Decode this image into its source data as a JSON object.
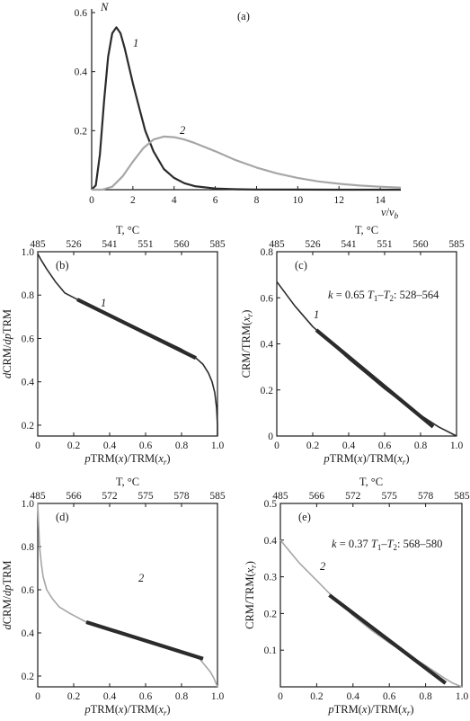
{
  "colors": {
    "dark": "#2b2b2b",
    "gray": "#a6a6a6",
    "axis": "#1a1a1a"
  },
  "chart_data": [
    {
      "id": "a",
      "panel_label": "(a)",
      "type": "line",
      "ylabel": "N",
      "xlabel": "v/v_b",
      "xlabel_parts": {
        "v": "v",
        "slash": "/",
        "vb": "v",
        "sub": "b"
      },
      "xlim": [
        0,
        15
      ],
      "ylim": [
        0,
        0.6
      ],
      "xticks": [
        0,
        2,
        4,
        6,
        8,
        10,
        12,
        14
      ],
      "yticks": [
        0.2,
        0.4,
        0.6
      ],
      "xtick_labels": [
        "0",
        "2",
        "4",
        "6",
        "8",
        "10",
        "12",
        "14"
      ],
      "ytick_labels": [
        "0.2",
        "0.4",
        "0.6"
      ],
      "series": [
        {
          "name": "1",
          "color": "dark",
          "x": [
            0,
            0.2,
            0.4,
            0.6,
            0.8,
            1.0,
            1.2,
            1.4,
            1.6,
            1.8,
            2.0,
            2.3,
            2.6,
            3.0,
            3.5,
            4.0,
            4.5,
            5.0,
            6.0,
            7.0,
            8.0,
            10.0,
            12.0,
            15.0
          ],
          "y": [
            0.0,
            0.015,
            0.12,
            0.3,
            0.45,
            0.53,
            0.55,
            0.53,
            0.48,
            0.42,
            0.36,
            0.28,
            0.2,
            0.13,
            0.07,
            0.04,
            0.022,
            0.012,
            0.004,
            0.0015,
            0.0006,
            0.0002,
            0.0001,
            0.0
          ]
        },
        {
          "name": "2",
          "color": "gray",
          "x": [
            0,
            0.5,
            1.0,
            1.5,
            2.0,
            2.5,
            3.0,
            3.5,
            4.0,
            4.5,
            5.0,
            6.0,
            7.0,
            8.0,
            9.0,
            10.0,
            11.0,
            12.0,
            13.0,
            14.0,
            15.0
          ],
          "y": [
            0.0,
            0.0,
            0.01,
            0.045,
            0.095,
            0.14,
            0.17,
            0.18,
            0.178,
            0.17,
            0.158,
            0.13,
            0.1,
            0.075,
            0.055,
            0.04,
            0.028,
            0.02,
            0.014,
            0.01,
            0.007
          ]
        }
      ]
    },
    {
      "id": "b",
      "panel_label": "(b)",
      "type": "line",
      "ylabel": "dCRM/dpTRM",
      "xlabel": "pTRM(x)/TRM(x_r)",
      "top_axis_label": "T, °C",
      "top_ticks": [
        "485",
        "526",
        "541",
        "551",
        "560",
        "585"
      ],
      "top_ticks_x": [
        0,
        0.2,
        0.4,
        0.6,
        0.8,
        1.0
      ],
      "xlim": [
        0,
        1
      ],
      "ylim": [
        0.15,
        1.0
      ],
      "xticks": [
        0,
        0.2,
        0.4,
        0.6,
        0.8,
        1.0
      ],
      "xtick_labels": [
        "0",
        "0.2",
        "0.4",
        "0.6",
        "0.8",
        "1.0"
      ],
      "yticks": [
        0.2,
        0.4,
        0.6,
        0.8,
        1.0
      ],
      "ytick_labels": [
        "0.2",
        "0.4",
        "0.6",
        "0.8",
        "1.0"
      ],
      "curve_label": "1",
      "series": [
        {
          "name": "curve",
          "color": "dark",
          "x": [
            0,
            0.02,
            0.05,
            0.1,
            0.15,
            0.22,
            0.3,
            0.4,
            0.5,
            0.6,
            0.7,
            0.8,
            0.88,
            0.92,
            0.95,
            0.97,
            0.985,
            0.995,
            1.0,
            1.0
          ],
          "y": [
            0.99,
            0.96,
            0.92,
            0.86,
            0.81,
            0.78,
            0.75,
            0.71,
            0.67,
            0.63,
            0.59,
            0.55,
            0.51,
            0.48,
            0.44,
            0.4,
            0.35,
            0.28,
            0.2,
            0.15
          ]
        },
        {
          "name": "fit",
          "color": "dark",
          "bold": true,
          "x": [
            0.22,
            0.88
          ],
          "y": [
            0.78,
            0.51
          ]
        }
      ]
    },
    {
      "id": "c",
      "panel_label": "(c)",
      "type": "line",
      "ylabel": "CRM/TRM(x_r)",
      "xlabel": "pTRM(x)/TRM(x_r)",
      "top_axis_label": "T, °C",
      "top_ticks": [
        "485",
        "526",
        "541",
        "551",
        "560",
        "585"
      ],
      "top_ticks_x": [
        0,
        0.2,
        0.4,
        0.6,
        0.8,
        1.0
      ],
      "xlim": [
        0,
        1
      ],
      "ylim": [
        0,
        0.8
      ],
      "xticks": [
        0,
        0.2,
        0.4,
        0.6,
        0.8,
        1.0
      ],
      "xtick_labels": [
        "0",
        "0.2",
        "0.4",
        "0.6",
        "0.8",
        "1.0"
      ],
      "yticks": [
        0,
        0.2,
        0.4,
        0.6,
        0.8
      ],
      "ytick_labels": [
        "0",
        "0.2",
        "0.4",
        "0.6",
        "0.8"
      ],
      "annotation": "k = 0.65 T1–T2: 528–564",
      "annotation_parts": {
        "k": "k",
        "eq": " = 0.65 ",
        "t1": "T",
        "t1s": "1",
        "dash": "–",
        "t2": "T",
        "t2s": "2",
        "rng": ": 528–564"
      },
      "curve_label": "1",
      "series": [
        {
          "name": "curve",
          "color": "dark",
          "x": [
            0,
            0.1,
            0.2,
            0.3,
            0.4,
            0.5,
            0.6,
            0.7,
            0.8,
            0.9,
            1.0
          ],
          "y": [
            0.67,
            0.565,
            0.475,
            0.405,
            0.335,
            0.27,
            0.205,
            0.145,
            0.09,
            0.04,
            0.0
          ]
        },
        {
          "name": "fit",
          "color": "dark",
          "bold": true,
          "x": [
            0.22,
            0.87
          ],
          "y": [
            0.46,
            0.04
          ]
        }
      ]
    },
    {
      "id": "d",
      "panel_label": "(d)",
      "type": "line",
      "ylabel": "dCRM/dpTRM",
      "xlabel": "pTRM(x)/TRM(x_r)",
      "top_axis_label": "T, °C",
      "top_ticks": [
        "485",
        "566",
        "572",
        "575",
        "578",
        "585"
      ],
      "top_ticks_x": [
        0,
        0.2,
        0.4,
        0.6,
        0.8,
        1.0
      ],
      "xlim": [
        0,
        1
      ],
      "ylim": [
        0.15,
        1.0
      ],
      "xticks": [
        0,
        0.2,
        0.4,
        0.6,
        0.8,
        1.0
      ],
      "xtick_labels": [
        "0",
        "0.2",
        "0.4",
        "0.6",
        "0.8",
        "1.0"
      ],
      "yticks": [
        0.2,
        0.4,
        0.6,
        0.8,
        1.0
      ],
      "ytick_labels": [
        "0.2",
        "0.4",
        "0.6",
        "0.8",
        "1.0"
      ],
      "curve_label": "2",
      "series": [
        {
          "name": "curve",
          "color": "gray",
          "x": [
            0,
            0.005,
            0.01,
            0.02,
            0.03,
            0.05,
            0.08,
            0.12,
            0.18,
            0.27,
            0.4,
            0.55,
            0.7,
            0.9,
            0.93,
            0.96,
            0.98,
            0.995,
            1.0
          ],
          "y": [
            1.0,
            0.9,
            0.8,
            0.72,
            0.66,
            0.6,
            0.56,
            0.52,
            0.49,
            0.45,
            0.415,
            0.375,
            0.335,
            0.28,
            0.25,
            0.22,
            0.19,
            0.16,
            0.15
          ]
        },
        {
          "name": "fit",
          "color": "dark",
          "bold": true,
          "x": [
            0.27,
            0.92
          ],
          "y": [
            0.45,
            0.28
          ]
        }
      ]
    },
    {
      "id": "e",
      "panel_label": "(e)",
      "type": "line",
      "ylabel": "CRM/TRM(x_r)",
      "xlabel": "pTRM(x)/TRM(x_r)",
      "top_axis_label": "T, °C",
      "top_ticks": [
        "485",
        "566",
        "572",
        "575",
        "578",
        "585"
      ],
      "top_ticks_x": [
        0,
        0.2,
        0.4,
        0.6,
        0.8,
        1.0
      ],
      "xlim": [
        0,
        1
      ],
      "ylim": [
        0,
        0.5
      ],
      "xticks": [
        0,
        0.2,
        0.4,
        0.6,
        0.8,
        1.0
      ],
      "xtick_labels": [
        "0",
        "0.2",
        "0.4",
        "0.6",
        "0.8",
        "1.0"
      ],
      "yticks": [
        0.1,
        0.2,
        0.3,
        0.4,
        0.5
      ],
      "ytick_labels": [
        "0.1",
        "0.2",
        "0.3",
        "0.4",
        "0.5"
      ],
      "annotation": "k = 0.37 T1–T2: 568–580",
      "annotation_parts": {
        "k": "k",
        "eq": " = 0.37 ",
        "t1": "T",
        "t1s": "1",
        "dash": "–",
        "t2": "T",
        "t2s": "2",
        "rng": ": 568–580"
      },
      "curve_label": "2",
      "series": [
        {
          "name": "curve",
          "color": "gray",
          "x": [
            0,
            0.1,
            0.2,
            0.27,
            0.4,
            0.5,
            0.6,
            0.7,
            0.8,
            0.9,
            0.95,
            1.0
          ],
          "y": [
            0.4,
            0.34,
            0.29,
            0.255,
            0.195,
            0.155,
            0.12,
            0.088,
            0.058,
            0.025,
            0.01,
            0.0
          ]
        },
        {
          "name": "fit",
          "color": "dark",
          "bold": true,
          "x": [
            0.27,
            0.91
          ],
          "y": [
            0.25,
            0.01
          ]
        }
      ]
    }
  ]
}
